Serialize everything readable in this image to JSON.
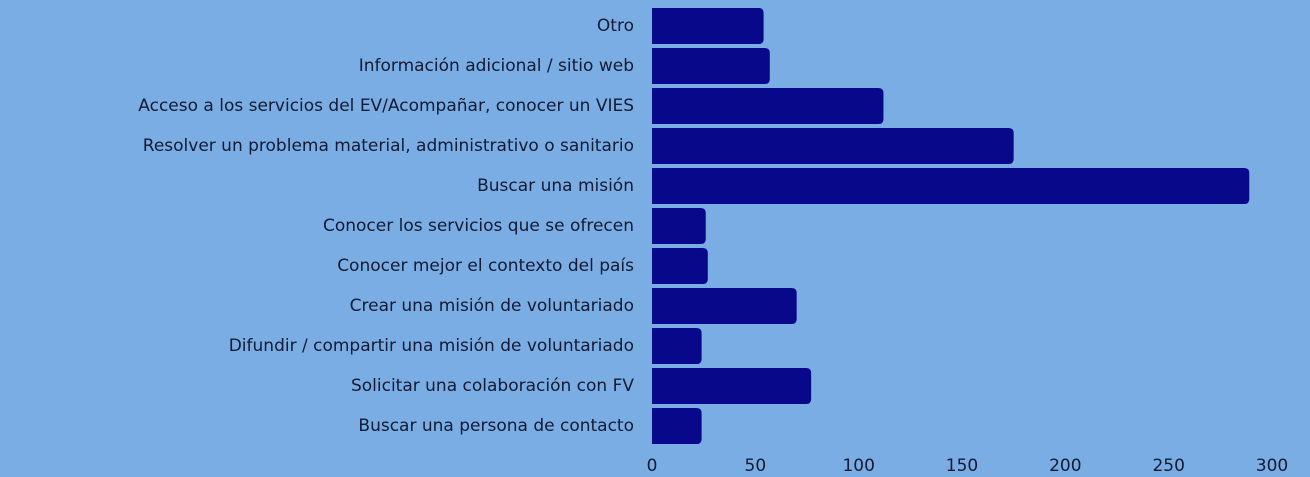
{
  "chart_data": {
    "type": "barh",
    "categories": [
      "Otro",
      "Información adicional / sitio web",
      "Acceso a los servicios del EV/Acompañar, conocer un VIES",
      "Resolver un problema material, administrativo o sanitario",
      "Buscar una misión",
      "Conocer los servicios que se ofrecen",
      "Conocer mejor el contexto del país",
      "Crear una misión de voluntariado",
      "Difundir / compartir una misión de voluntariado",
      "Solicitar una colaboración con FV",
      "Buscar una persona de contacto"
    ],
    "values": [
      54,
      57,
      112,
      175,
      289,
      26,
      27,
      70,
      24,
      77,
      24
    ],
    "color": "#08088a",
    "xlim": [
      0,
      300
    ],
    "xticks": [
      0,
      50,
      100,
      150,
      200,
      250,
      300
    ],
    "grid": false
  }
}
